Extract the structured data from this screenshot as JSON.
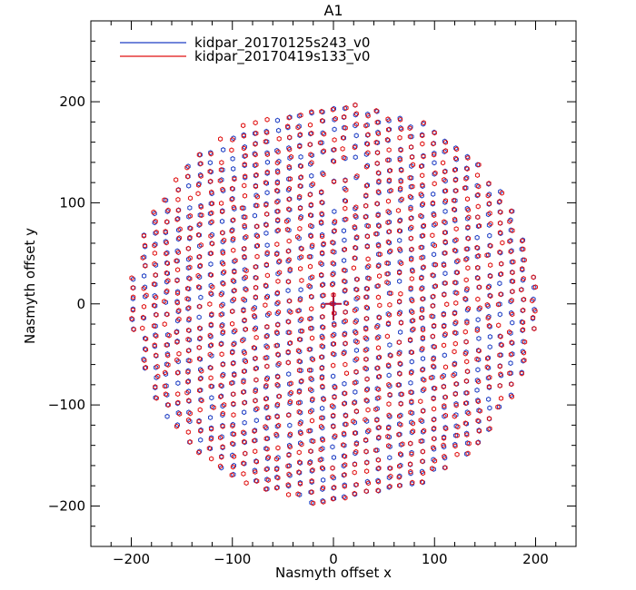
{
  "chart_data": {
    "type": "scatter",
    "title": "A1",
    "xlabel": "Nasmyth offset x",
    "ylabel": "Nasmyth offset y",
    "xlim": [
      -240,
      240
    ],
    "ylim": [
      -240,
      280
    ],
    "xticks": [
      -200,
      -100,
      0,
      100,
      200
    ],
    "yticks": [
      -200,
      -100,
      0,
      100,
      200
    ],
    "xtick_labels": [
      "−200",
      "−100",
      "0",
      "100",
      "200"
    ],
    "ytick_labels": [
      "−200",
      "−100",
      "0",
      "100",
      "200"
    ],
    "marker": "open-hexagon",
    "legend_position": "top-left",
    "grid": false,
    "field_center": {
      "x": 0,
      "y": 0,
      "marker": "plus"
    },
    "array_extent": {
      "x_range": [
        -200,
        200
      ],
      "y_range": [
        -200,
        200
      ],
      "shape": "circle"
    },
    "row_spacing_approx": 11,
    "series": [
      {
        "name": "kidpar_20170125s243_v0",
        "color": "#1f3fc4"
      },
      {
        "name": "kidpar_20170419s133_v0",
        "color": "#e01010"
      }
    ]
  }
}
